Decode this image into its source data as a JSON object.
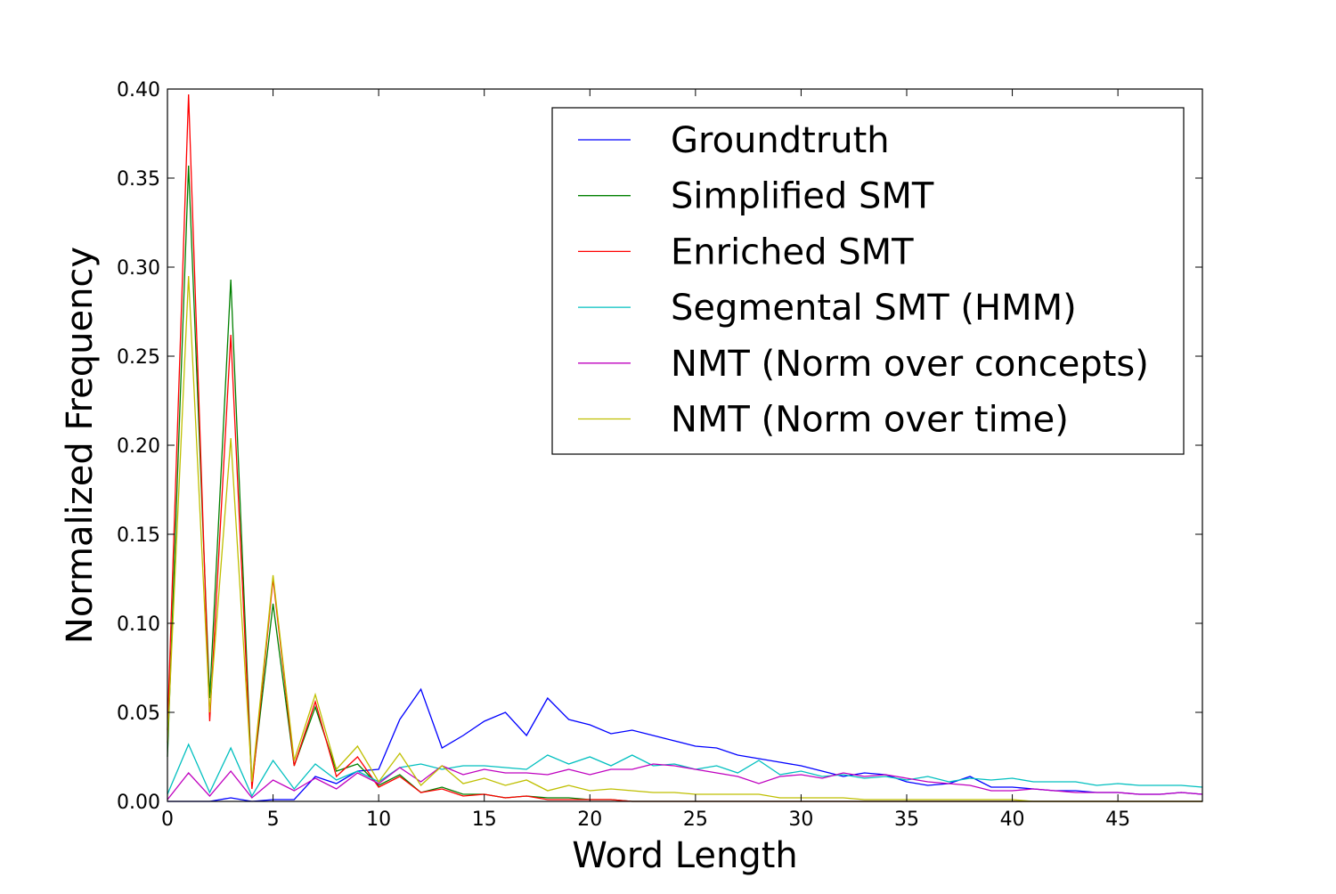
{
  "chart_data": {
    "type": "line",
    "title": "",
    "xlabel": "Word Length",
    "ylabel": "Normalized Frequency",
    "xlim": [
      0,
      49
    ],
    "ylim": [
      0,
      0.4
    ],
    "xticks": [
      0,
      5,
      10,
      15,
      20,
      25,
      30,
      35,
      40,
      45
    ],
    "xtick_labels": [
      "0",
      "5",
      "10",
      "15",
      "20",
      "25",
      "30",
      "35",
      "40",
      "45"
    ],
    "yticks": [
      0,
      0.05,
      0.1,
      0.15,
      0.2,
      0.25,
      0.3,
      0.35,
      0.4
    ],
    "ytick_labels": [
      "0.00",
      "0.05",
      "0.10",
      "0.15",
      "0.20",
      "0.25",
      "0.30",
      "0.35",
      "0.40"
    ],
    "legend_position": "top-right",
    "grid": false,
    "x": [
      0,
      1,
      2,
      3,
      4,
      5,
      6,
      7,
      8,
      9,
      10,
      11,
      12,
      13,
      14,
      15,
      16,
      17,
      18,
      19,
      20,
      21,
      22,
      23,
      24,
      25,
      26,
      27,
      28,
      29,
      30,
      31,
      32,
      33,
      34,
      35,
      36,
      37,
      38,
      39,
      40,
      41,
      42,
      43,
      44,
      45,
      46,
      47,
      48,
      49
    ],
    "series": [
      {
        "name": "Groundtruth",
        "color": "#0000ff",
        "values": [
          0.0,
          0.0,
          0.0,
          0.002,
          0.0,
          0.001,
          0.001,
          0.014,
          0.01,
          0.017,
          0.018,
          0.046,
          0.063,
          0.03,
          0.037,
          0.045,
          0.05,
          0.037,
          0.058,
          0.046,
          0.043,
          0.038,
          0.04,
          0.037,
          0.034,
          0.031,
          0.03,
          0.026,
          0.024,
          0.022,
          0.02,
          0.017,
          0.014,
          0.016,
          0.015,
          0.011,
          0.009,
          0.01,
          0.014,
          0.008,
          0.008,
          0.007,
          0.006,
          0.006,
          0.005,
          0.005,
          0.004,
          0.004,
          0.005,
          0.004
        ]
      },
      {
        "name": "Simplified SMT",
        "color": "#008000",
        "values": [
          0.025,
          0.357,
          0.058,
          0.293,
          0.009,
          0.111,
          0.02,
          0.053,
          0.017,
          0.021,
          0.009,
          0.015,
          0.005,
          0.008,
          0.004,
          0.004,
          0.002,
          0.003,
          0.002,
          0.002,
          0.001,
          0.001,
          0.0,
          0.0,
          0.0,
          0.0,
          0.0,
          0.0,
          0.0,
          0.0,
          0.0,
          0.0,
          0.0,
          0.0,
          0.0,
          0.0,
          0.0,
          0.0,
          0.0,
          0.0,
          0.0,
          0.0,
          0.0,
          0.0,
          0.0,
          0.0,
          0.0,
          0.0,
          0.0,
          0.0
        ]
      },
      {
        "name": "Enriched SMT",
        "color": "#ff0000",
        "values": [
          0.04,
          0.397,
          0.045,
          0.262,
          0.007,
          0.125,
          0.02,
          0.056,
          0.014,
          0.025,
          0.008,
          0.014,
          0.005,
          0.007,
          0.003,
          0.004,
          0.002,
          0.003,
          0.001,
          0.001,
          0.001,
          0.001,
          0.0,
          0.0,
          0.0,
          0.0,
          0.0,
          0.0,
          0.0,
          0.0,
          0.0,
          0.0,
          0.0,
          0.0,
          0.0,
          0.0,
          0.0,
          0.0,
          0.0,
          0.0,
          0.0,
          0.0,
          0.0,
          0.0,
          0.0,
          0.0,
          0.0,
          0.0,
          0.0,
          0.0
        ]
      },
      {
        "name": "Segmental SMT (HMM)",
        "color": "#00bfbf",
        "values": [
          0.004,
          0.032,
          0.005,
          0.03,
          0.003,
          0.023,
          0.007,
          0.021,
          0.012,
          0.017,
          0.011,
          0.019,
          0.021,
          0.018,
          0.02,
          0.02,
          0.019,
          0.018,
          0.026,
          0.021,
          0.025,
          0.02,
          0.026,
          0.02,
          0.021,
          0.018,
          0.02,
          0.016,
          0.023,
          0.015,
          0.017,
          0.014,
          0.015,
          0.013,
          0.014,
          0.012,
          0.014,
          0.011,
          0.013,
          0.012,
          0.013,
          0.011,
          0.011,
          0.011,
          0.009,
          0.01,
          0.009,
          0.009,
          0.009,
          0.008
        ]
      },
      {
        "name": "NMT (Norm over concepts)",
        "color": "#bf00bf",
        "values": [
          0.001,
          0.016,
          0.003,
          0.017,
          0.002,
          0.012,
          0.006,
          0.013,
          0.007,
          0.016,
          0.01,
          0.019,
          0.011,
          0.02,
          0.015,
          0.018,
          0.016,
          0.016,
          0.015,
          0.018,
          0.015,
          0.018,
          0.018,
          0.021,
          0.02,
          0.018,
          0.016,
          0.014,
          0.01,
          0.014,
          0.015,
          0.013,
          0.016,
          0.014,
          0.015,
          0.013,
          0.011,
          0.01,
          0.009,
          0.006,
          0.006,
          0.007,
          0.006,
          0.005,
          0.005,
          0.005,
          0.004,
          0.004,
          0.005,
          0.004
        ]
      },
      {
        "name": "NMT (Norm over time)",
        "color": "#bfbf00",
        "values": [
          0.033,
          0.295,
          0.05,
          0.204,
          0.011,
          0.127,
          0.023,
          0.06,
          0.018,
          0.031,
          0.011,
          0.027,
          0.009,
          0.02,
          0.01,
          0.013,
          0.009,
          0.012,
          0.006,
          0.009,
          0.006,
          0.007,
          0.006,
          0.005,
          0.005,
          0.004,
          0.004,
          0.004,
          0.004,
          0.002,
          0.002,
          0.002,
          0.002,
          0.001,
          0.001,
          0.001,
          0.001,
          0.001,
          0.001,
          0.001,
          0.001,
          0.0,
          0.0,
          0.0,
          0.0,
          0.0,
          0.0,
          0.0,
          0.0,
          0.0
        ]
      }
    ]
  }
}
